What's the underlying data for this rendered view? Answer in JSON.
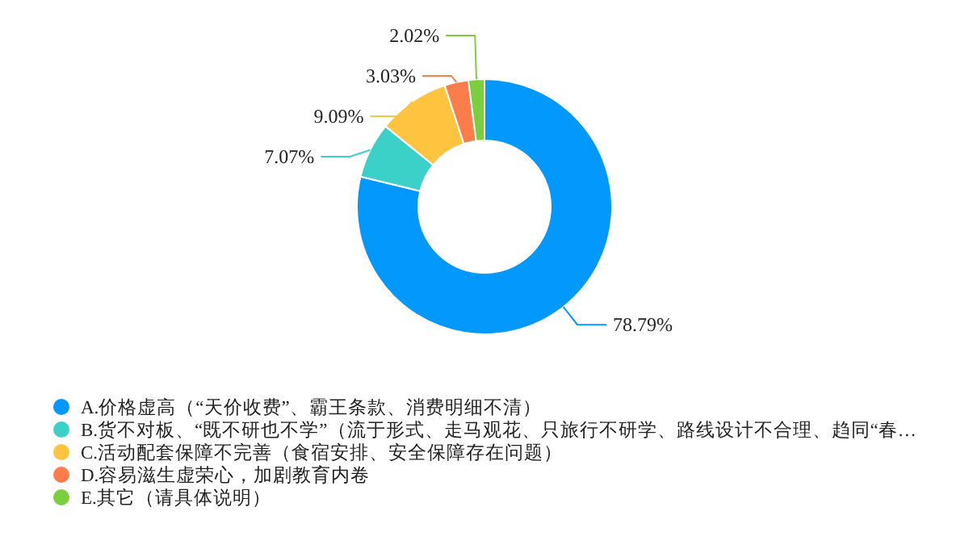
{
  "chart_data": {
    "type": "donut",
    "categories": [
      "A.价格虚高（“天价收费”、霸王条款、消费明细不清）",
      "B.货不对板、“既不研也不学”（流于形式、走马观花、只旅行不研学、路线设计不合理、趋同“春…",
      "C.活动配套保障不完善（食宿安排、安全保障存在问题）",
      "D.容易滋生虚荣心，加剧教育内卷",
      "E.其它（请具体说明）"
    ],
    "values": [
      78.79,
      7.07,
      9.09,
      3.03,
      2.02
    ],
    "colors": [
      "#0399fc",
      "#3bd1c9",
      "#fec33f",
      "#fc7d4b",
      "#7bcf3f"
    ],
    "value_labels": [
      "78.79%",
      "7.07%",
      "9.09%",
      "3.03%",
      "2.02%"
    ],
    "legend": "bottom left"
  }
}
